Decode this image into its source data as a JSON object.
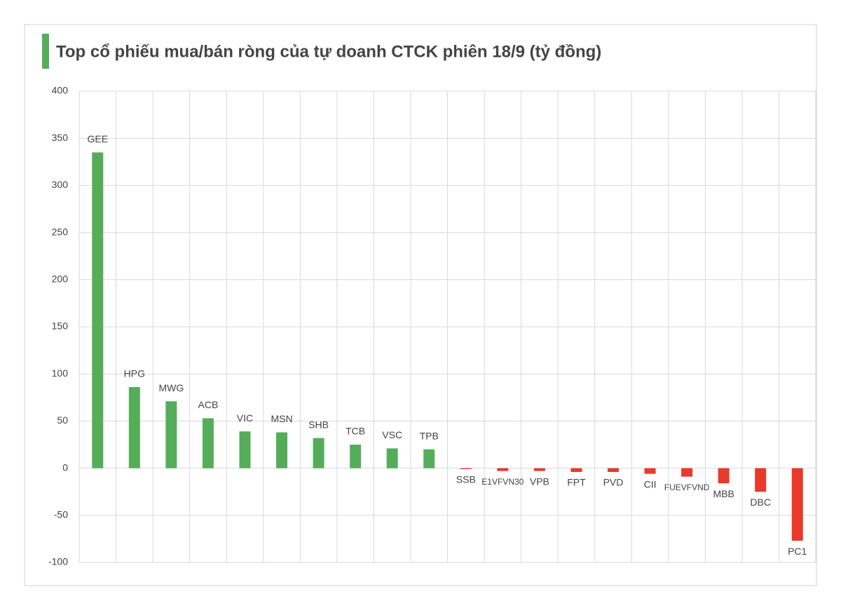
{
  "chart_data": {
    "type": "bar",
    "title": "Top cổ phiếu mua/bán ròng của tự doanh CTCK phiên 18/9 (tỷ đồng)",
    "categories": [
      "GEE",
      "HPG",
      "MWG",
      "ACB",
      "VIC",
      "MSN",
      "SHB",
      "TCB",
      "VSC",
      "TPB",
      "SSB",
      "E1VFVN30",
      "VPB",
      "FPT",
      "PVD",
      "CII",
      "FUEVFVND",
      "MBB",
      "DBC",
      "PC1"
    ],
    "values": [
      335,
      86,
      71,
      53,
      39,
      38,
      32,
      25,
      21,
      20,
      -1,
      -3,
      -3,
      -4,
      -4,
      -6,
      -9,
      -16,
      -25,
      -77
    ],
    "color": "#55ad5a",
    "negative_color": "#e8392b",
    "ylim": [
      -100,
      400
    ],
    "yticks": [
      -100,
      -50,
      0,
      50,
      100,
      150,
      200,
      250,
      300,
      350,
      400
    ],
    "grid": true
  }
}
